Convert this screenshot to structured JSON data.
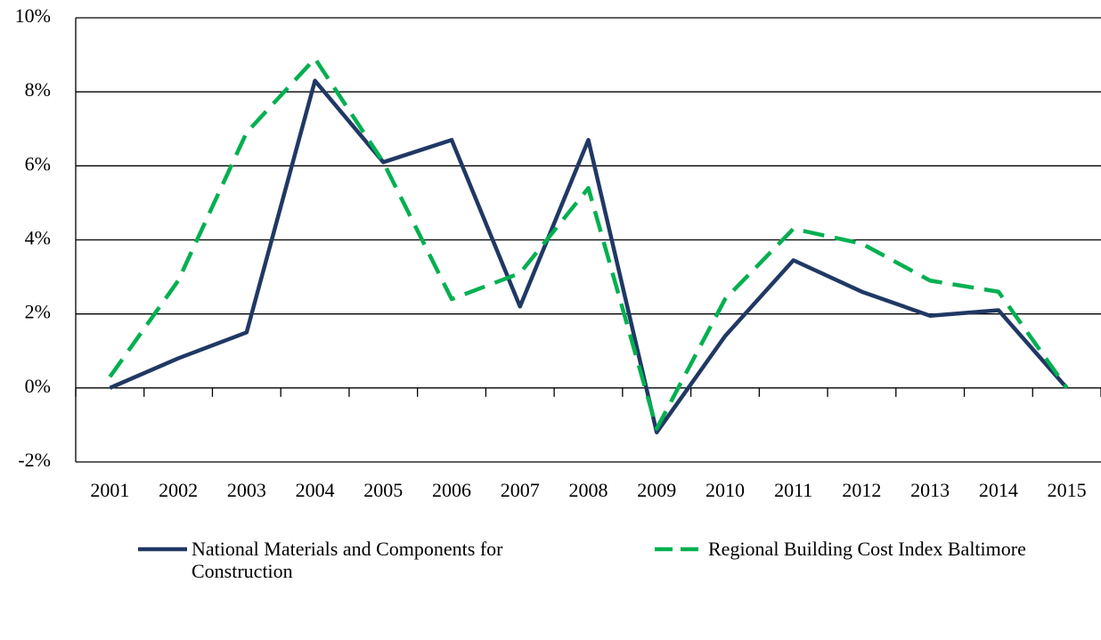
{
  "chart_data": {
    "type": "line",
    "categories": [
      "2001",
      "2002",
      "2003",
      "2004",
      "2005",
      "2006",
      "2007",
      "2008",
      "2009",
      "2010",
      "2011",
      "2012",
      "2013",
      "2014",
      "2015"
    ],
    "series": [
      {
        "name": "National Materials and Components for Construction",
        "color": "#203864",
        "dash": "solid",
        "values": [
          0,
          0.8,
          1.5,
          8.3,
          6.1,
          6.7,
          2.2,
          6.7,
          -1.2,
          1.4,
          3.45,
          2.6,
          1.95,
          2.1,
          0
        ]
      },
      {
        "name": "Regional Building Cost Index Baltimore",
        "color": "#00b050",
        "dash": "dashed",
        "values": [
          0.3,
          2.9,
          6.9,
          8.9,
          6.1,
          2.4,
          3.1,
          5.4,
          -1.1,
          2.4,
          4.3,
          3.9,
          2.9,
          2.6,
          0
        ]
      }
    ],
    "ylim": [
      -2,
      10
    ],
    "yticks": [
      {
        "value": -2,
        "label": "-2%"
      },
      {
        "value": 0,
        "label": "0%"
      },
      {
        "value": 2,
        "label": "2%"
      },
      {
        "value": 4,
        "label": "4%"
      },
      {
        "value": 6,
        "label": "6%"
      },
      {
        "value": 8,
        "label": "8%"
      },
      {
        "value": 10,
        "label": "10%"
      }
    ],
    "grid": true,
    "legend": "bottom"
  }
}
